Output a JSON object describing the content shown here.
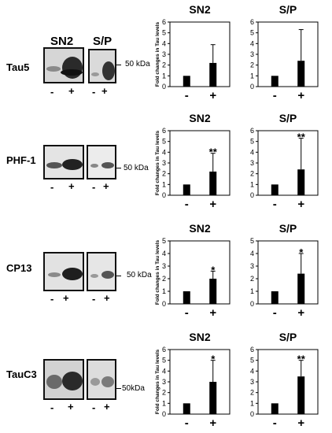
{
  "panels": [
    {
      "antibody": "Tau5",
      "marker": "50 kDa",
      "blot_headers": [
        "SN2",
        "S/P"
      ],
      "lane_labels": [
        "-",
        "+"
      ]
    },
    {
      "antibody": "PHF-1",
      "marker": "50 kDa",
      "blot_headers": [],
      "lane_labels": [
        "-",
        "+"
      ]
    },
    {
      "antibody": "CP13",
      "marker": "50 kDa",
      "blot_headers": [],
      "lane_labels": [
        "-",
        "+"
      ]
    },
    {
      "antibody": "TauC3",
      "marker": "50kDa",
      "blot_headers": [],
      "lane_labels": [
        "-",
        "+"
      ]
    }
  ],
  "chart_data": [
    {
      "type": "bar",
      "title": "SN2",
      "ylabel": "Fold changes in Tau levels",
      "categories": [
        "-",
        "+"
      ],
      "values": [
        1,
        2.2
      ],
      "error": [
        0,
        1.7
      ],
      "annotation": "",
      "ylim": [
        0,
        6
      ],
      "yticks": [
        "0",
        "1",
        "2",
        "3",
        "4",
        "5",
        "6"
      ]
    },
    {
      "type": "bar",
      "title": "S/P",
      "ylabel": "",
      "categories": [
        "-",
        "+"
      ],
      "values": [
        1,
        2.4
      ],
      "error": [
        0,
        2.9
      ],
      "annotation": "",
      "ylim": [
        0,
        6
      ],
      "yticks": [
        "0",
        "1",
        "2",
        "3",
        "4",
        "5",
        "6"
      ]
    },
    {
      "type": "bar",
      "title": "SN2",
      "ylabel": "Fold changes in Tau levels",
      "categories": [
        "-",
        "+"
      ],
      "values": [
        1,
        2.2
      ],
      "error": [
        0,
        1.7
      ],
      "annotation": "**",
      "ylim": [
        0,
        6
      ],
      "yticks": [
        "0",
        "1",
        "2",
        "3",
        "4",
        "5",
        "6"
      ]
    },
    {
      "type": "bar",
      "title": "S/P",
      "ylabel": "",
      "categories": [
        "-",
        "+"
      ],
      "values": [
        1,
        2.4
      ],
      "error": [
        0,
        2.9
      ],
      "annotation": "**",
      "ylim": [
        0,
        6
      ],
      "yticks": [
        "0",
        "1",
        "2",
        "3",
        "4",
        "5",
        "6"
      ]
    },
    {
      "type": "bar",
      "title": "SN2",
      "ylabel": "Fold changes in Tau levels",
      "categories": [
        "-",
        "+"
      ],
      "values": [
        1,
        2.0
      ],
      "error": [
        0,
        0.6
      ],
      "annotation": "*",
      "ylim": [
        0,
        5
      ],
      "yticks": [
        "0",
        "1",
        "2",
        "3",
        "4",
        "5"
      ]
    },
    {
      "type": "bar",
      "title": "S/P",
      "ylabel": "",
      "categories": [
        "-",
        "+"
      ],
      "values": [
        1,
        2.4
      ],
      "error": [
        0,
        1.6
      ],
      "annotation": "*",
      "ylim": [
        0,
        5
      ],
      "yticks": [
        "0",
        "1",
        "2",
        "3",
        "4",
        "5"
      ]
    },
    {
      "type": "bar",
      "title": "SN2",
      "ylabel": "Fold changes in Tau levels",
      "categories": [
        "-",
        "+"
      ],
      "values": [
        1,
        3.0
      ],
      "error": [
        0,
        2.0
      ],
      "annotation": "*",
      "ylim": [
        0,
        6
      ],
      "yticks": [
        "0",
        "1",
        "2",
        "3",
        "4",
        "5",
        "6"
      ]
    },
    {
      "type": "bar",
      "title": "S/P",
      "ylabel": "",
      "categories": [
        "-",
        "+"
      ],
      "values": [
        1,
        3.5
      ],
      "error": [
        0,
        1.5
      ],
      "annotation": "**",
      "ylim": [
        0,
        6
      ],
      "yticks": [
        "0",
        "1",
        "2",
        "3",
        "4",
        "5",
        "6"
      ]
    }
  ]
}
